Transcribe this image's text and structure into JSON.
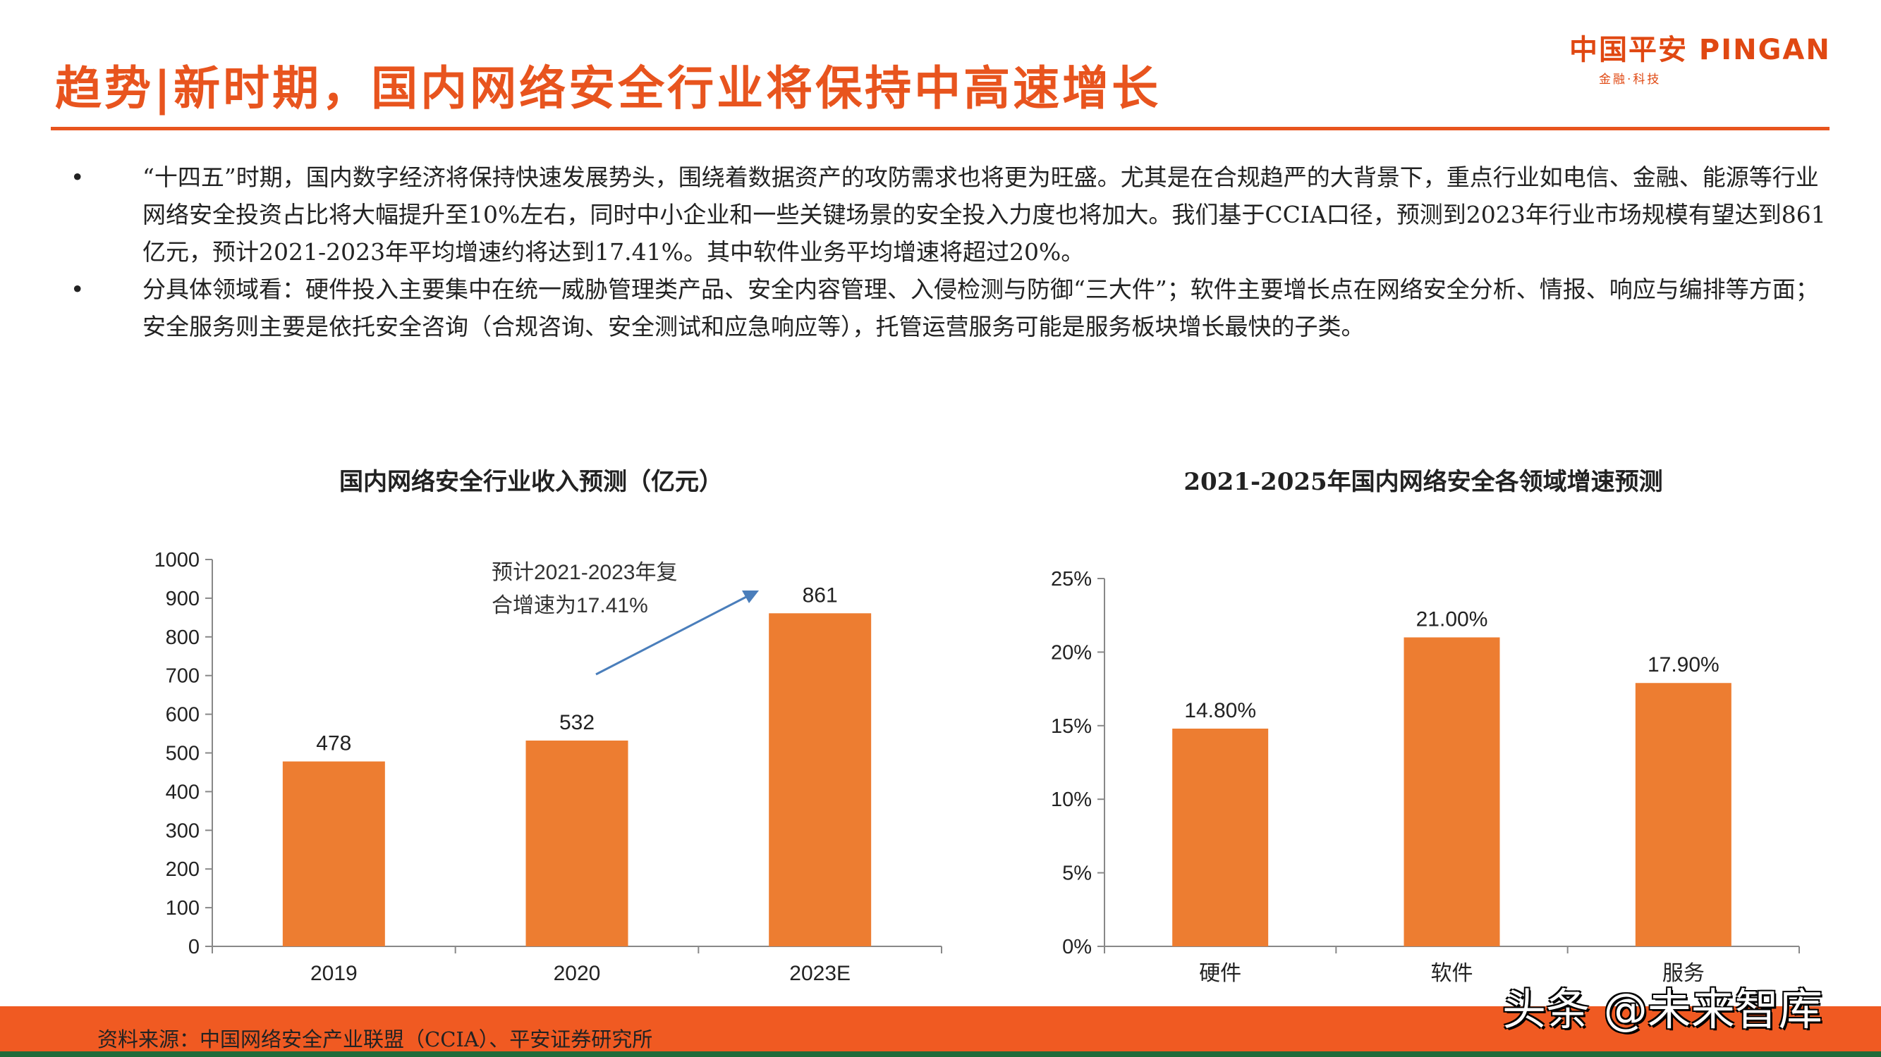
{
  "header": {
    "title": "趋势|新时期，国内网络安全行业将保持中高速增长",
    "logo_main": "中国平安 PINGAN",
    "logo_sub": "金融·科技"
  },
  "bullets": [
    "“十四五”时期，国内数字经济将保持快速发展势头，围绕着数据资产的攻防需求也将更为旺盛。尤其是在合规趋严的大背景下，重点行业如电信、金融、能源等行业网络安全投资占比将大幅提升至10%左右，同时中小企业和一些关键场景的安全投入力度也将加大。我们基于CCIA口径，预测到2023年行业市场规模有望达到861亿元，预计2021-2023年平均增速约将达到17.41%。其中软件业务平均增速将超过20%。",
    "分具体领域看：硬件投入主要集中在统一威胁管理类产品、安全内容管理、入侵检测与防御“三大件”；软件主要增长点在网络安全分析、情报、响应与编排等方面；安全服务则主要是依托安全咨询（合规咨询、安全测试和应急响应等），托管运营服务可能是服务板块增长最快的子类。"
  ],
  "bullet_symbol": "•",
  "chart_data": [
    {
      "type": "bar",
      "title": "国内网络安全行业收入预测（亿元）",
      "categories": [
        "2019",
        "2020",
        "2023E"
      ],
      "values": [
        478,
        532,
        861
      ],
      "data_labels": [
        "478",
        "532",
        "861"
      ],
      "ylim": [
        0,
        1000
      ],
      "yticks": [
        "0",
        "100",
        "200",
        "300",
        "400",
        "500",
        "600",
        "700",
        "800",
        "900",
        "1000"
      ],
      "annotation": [
        "预计2021-2023年复",
        "合增速为17.41%"
      ],
      "color": "#ed7d31",
      "grid": false
    },
    {
      "type": "bar",
      "title": "2021-2025年国内网络安全各领域增速预测",
      "categories": [
        "硬件",
        "软件",
        "服务"
      ],
      "values": [
        14.8,
        21.0,
        17.9
      ],
      "data_labels": [
        "14.80%",
        "21.00%",
        "17.90%"
      ],
      "ylim": [
        0,
        25
      ],
      "yticks": [
        "0%",
        "5%",
        "10%",
        "15%",
        "20%",
        "25%"
      ],
      "color": "#ed7d31",
      "grid": false
    }
  ],
  "footer": {
    "source": "资料来源：中国网络安全产业联盟（CCIA）、平安证券研究所",
    "watermark": "头条 @未来智库"
  }
}
